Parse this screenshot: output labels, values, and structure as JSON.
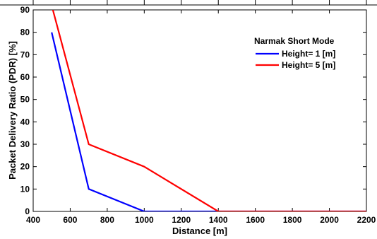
{
  "chart_data": {
    "type": "line",
    "title": "",
    "xlabel": "Distance [m]",
    "ylabel": "Packet Delivery Ratio (PDR) [%]",
    "xlim": [
      400,
      2200
    ],
    "ylim": [
      0,
      90
    ],
    "xticks": [
      400,
      600,
      800,
      1000,
      1200,
      1400,
      1600,
      1800,
      2000,
      2200
    ],
    "yticks": [
      0,
      10,
      20,
      30,
      40,
      50,
      60,
      70,
      80,
      90
    ],
    "grid": false,
    "legend": {
      "title": "Narmak Short Mode",
      "placement": "top-right"
    },
    "series": [
      {
        "name": "Height= 1 [m]",
        "color": "#0000ff",
        "x": [
          500,
          700,
          1000,
          1400,
          2200
        ],
        "y": [
          80,
          10,
          0,
          0,
          0
        ]
      },
      {
        "name": "Height= 5 [m]",
        "color": "#ff0000",
        "x": [
          500,
          700,
          1000,
          1400,
          2200
        ],
        "y": [
          92,
          30,
          20,
          0,
          0
        ]
      }
    ]
  }
}
